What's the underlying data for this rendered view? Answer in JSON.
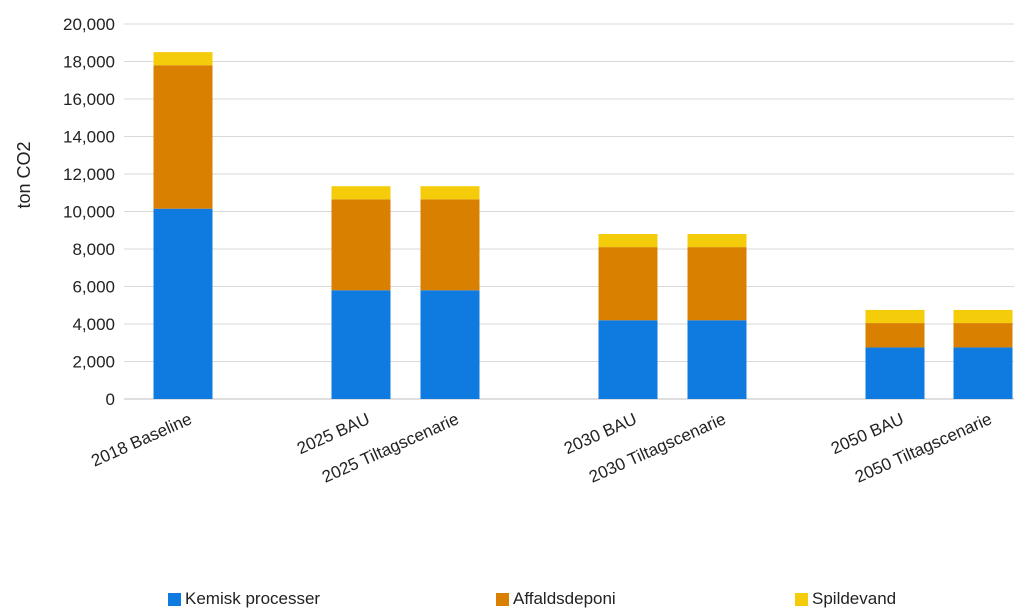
{
  "chart_data": {
    "type": "bar",
    "stacked": true,
    "categories": [
      "2018 Baseline",
      "2025 BAU",
      "2025 Tiltagscenarie",
      "2030 BAU",
      "2030 Tiltagscenarie",
      "2050 BAU",
      "2050 Tiltagscenarie"
    ],
    "series": [
      {
        "name": "Kemisk processer",
        "color": "#0F7ADF",
        "values": [
          10150,
          5800,
          5800,
          4200,
          4200,
          2750,
          2750
        ]
      },
      {
        "name": "Affaldsdeponi",
        "color": "#D98000",
        "values": [
          7650,
          4850,
          4850,
          3900,
          3900,
          1300,
          1300
        ]
      },
      {
        "name": "Spildevand",
        "color": "#F5CC0A",
        "values": [
          700,
          700,
          700,
          700,
          700,
          700,
          700
        ]
      }
    ],
    "ylabel": "ton CO2",
    "ylim": [
      0,
      20000
    ],
    "yticks": [
      "0",
      "2,000",
      "4,000",
      "6,000",
      "8,000",
      "10,000",
      "12,000",
      "14,000",
      "16,000",
      "18,000",
      "20,000"
    ],
    "grid": true,
    "legend_position": "bottom"
  }
}
